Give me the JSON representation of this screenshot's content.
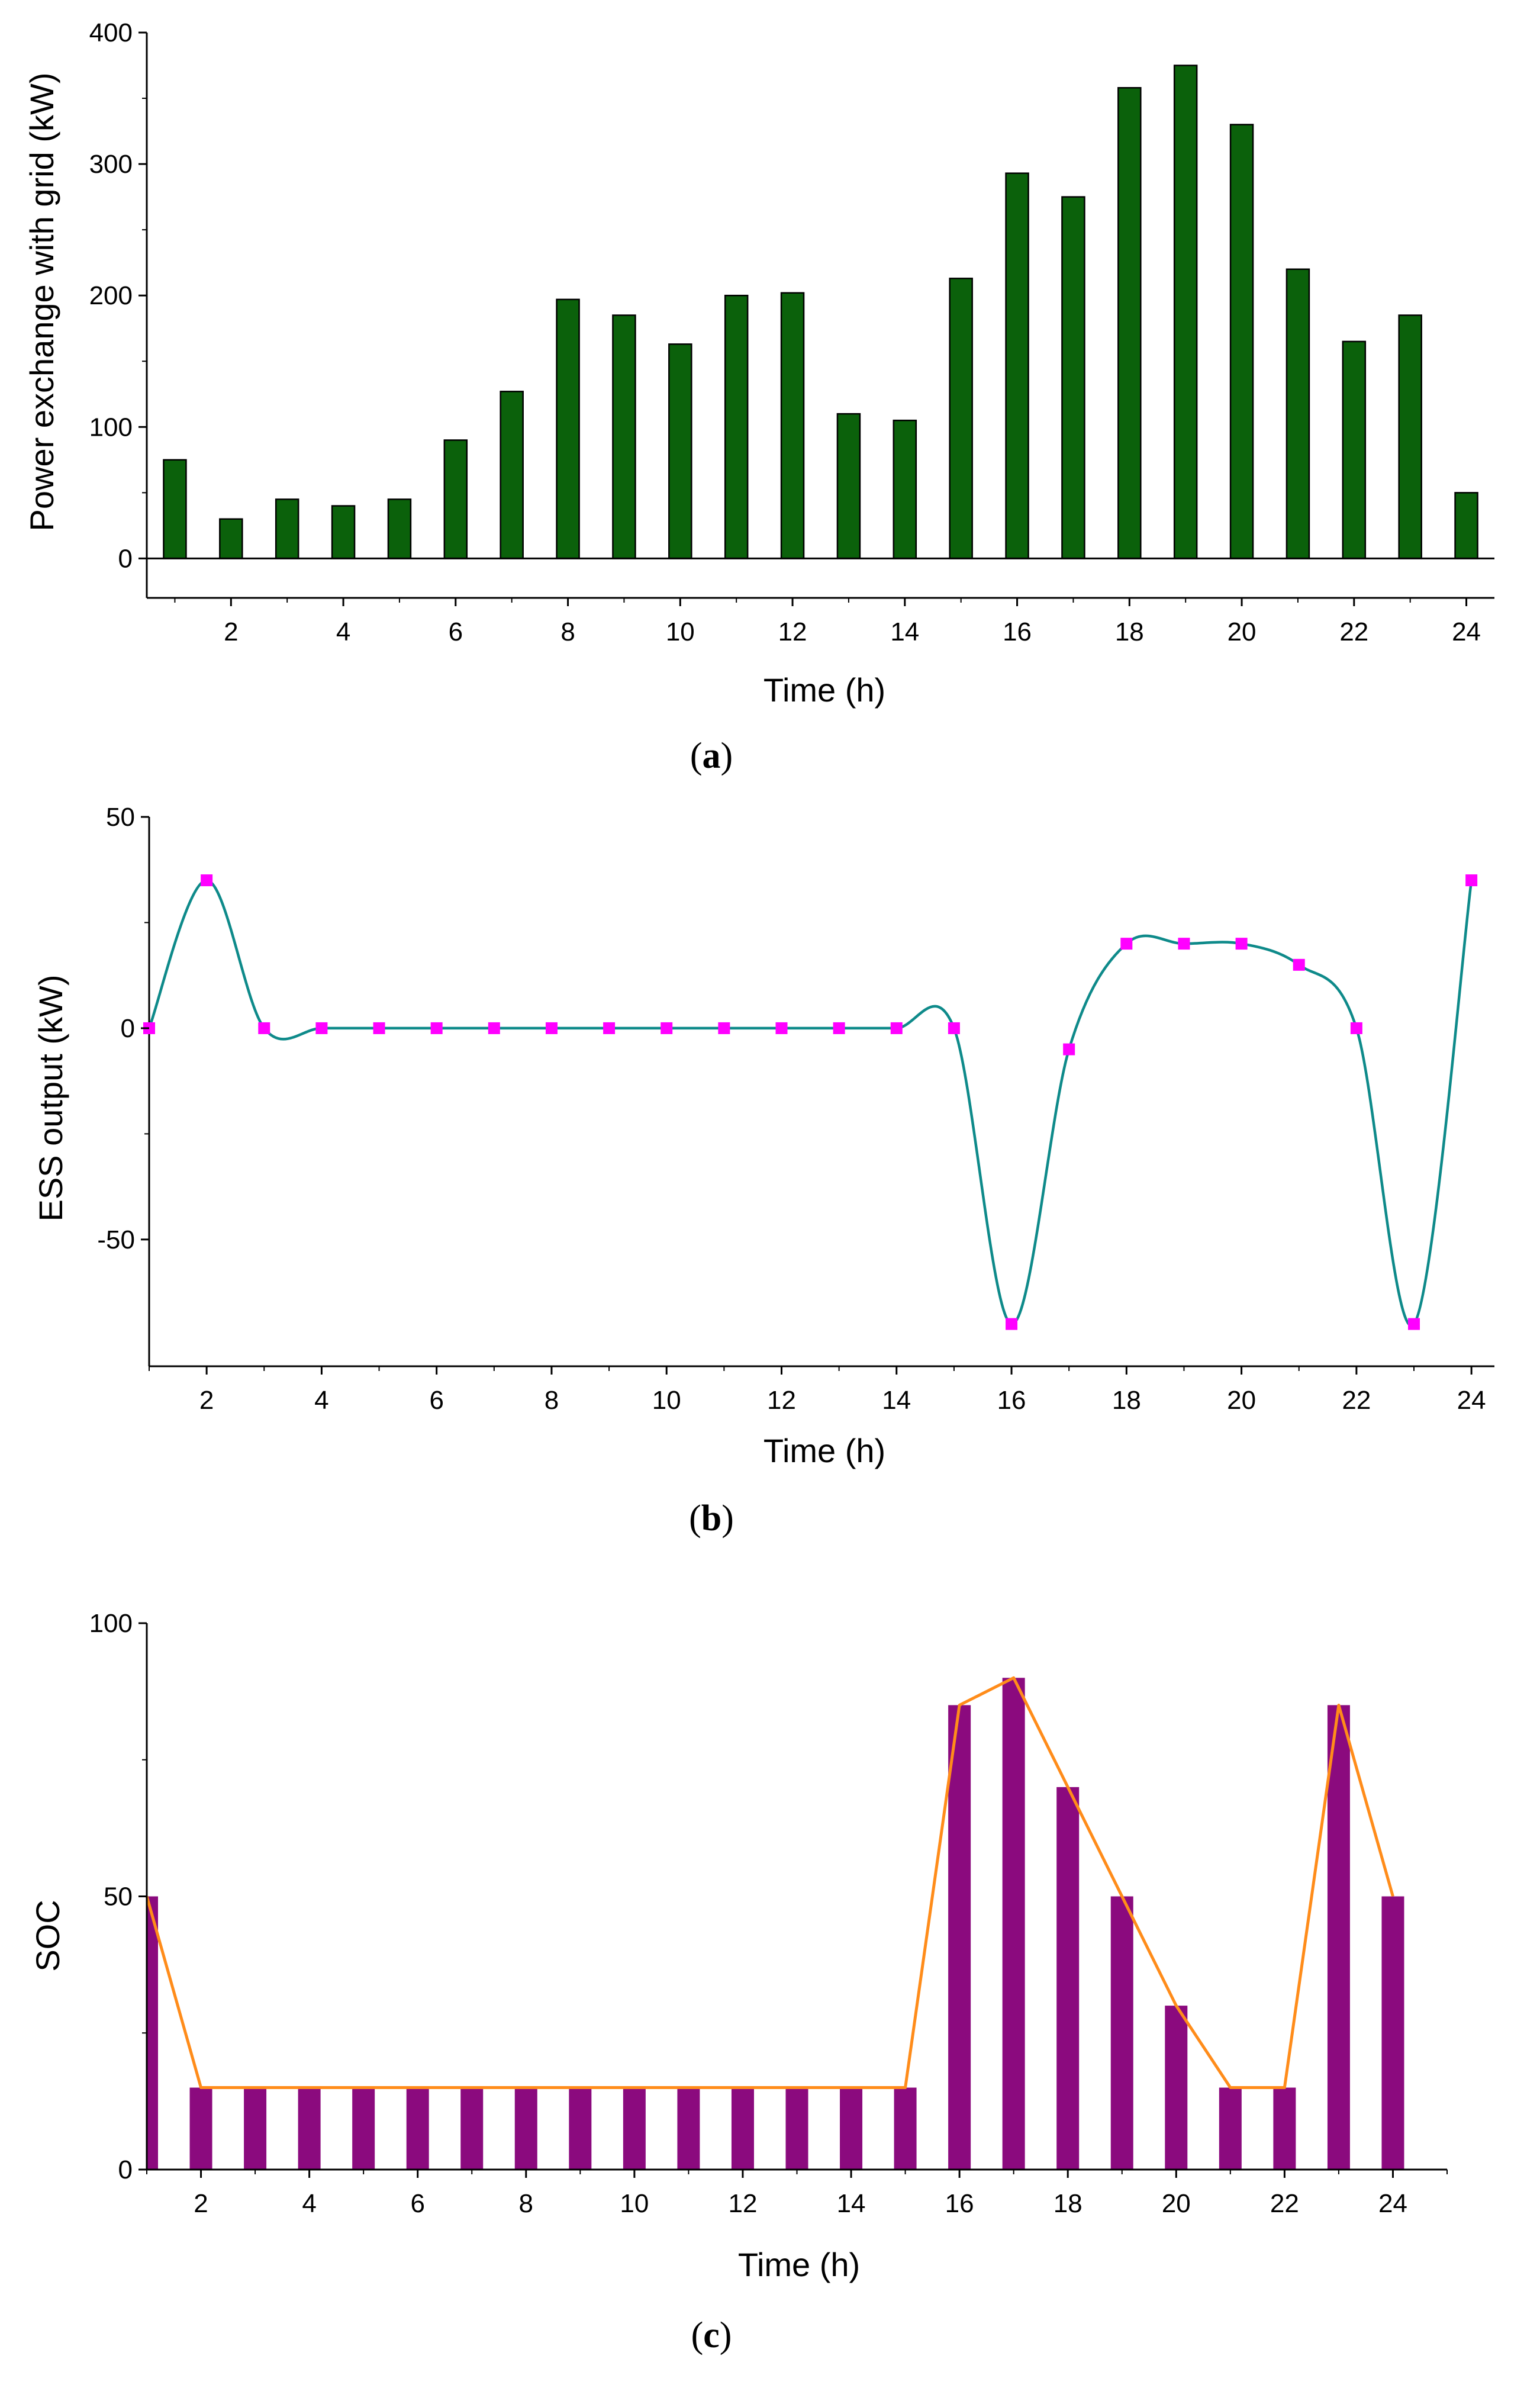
{
  "chart_data": [
    {
      "type": "bar",
      "panel": "a",
      "xlabel": "Time (h)",
      "ylabel": "Power exchange with grid (kW)",
      "x": [
        1,
        2,
        3,
        4,
        5,
        6,
        7,
        8,
        9,
        10,
        11,
        12,
        13,
        14,
        15,
        16,
        17,
        18,
        19,
        20,
        21,
        22,
        23,
        24
      ],
      "values": [
        75,
        30,
        45,
        40,
        45,
        90,
        127,
        197,
        185,
        163,
        200,
        202,
        110,
        105,
        213,
        293,
        275,
        358,
        375,
        330,
        220,
        165,
        185,
        50
      ],
      "xlim": [
        0.5,
        24.5
      ],
      "ylim": [
        -30,
        400
      ],
      "yticks": [
        0,
        100,
        200,
        300,
        400
      ],
      "xticks": [
        2,
        4,
        6,
        8,
        10,
        12,
        14,
        16,
        18,
        20,
        22,
        24
      ],
      "bar_color": "#0b610b"
    },
    {
      "type": "line",
      "panel": "b",
      "xlabel": "Time (h)",
      "ylabel": "ESS output (kW)",
      "x": [
        1,
        2,
        3,
        4,
        5,
        6,
        7,
        8,
        9,
        10,
        11,
        12,
        13,
        14,
        15,
        16,
        17,
        18,
        19,
        20,
        21,
        22,
        23,
        24
      ],
      "values": [
        0,
        35,
        0,
        0,
        0,
        0,
        0,
        0,
        0,
        0,
        0,
        0,
        0,
        0,
        0,
        -70,
        -5,
        20,
        20,
        20,
        15,
        0,
        -70,
        35
      ],
      "xlim": [
        1,
        24.4
      ],
      "ylim": [
        -80,
        50
      ],
      "yticks": [
        -50,
        0,
        50
      ],
      "xticks": [
        2,
        4,
        6,
        8,
        10,
        12,
        14,
        16,
        18,
        20,
        22,
        24
      ],
      "line_color": "#0e8a8a",
      "marker_color": "#ff00ff",
      "smooth": true
    },
    {
      "type": "bar",
      "panel": "c",
      "xlabel": "Time (h)",
      "ylabel": "SOC",
      "x": [
        1,
        2,
        3,
        4,
        5,
        6,
        7,
        8,
        9,
        10,
        11,
        12,
        13,
        14,
        15,
        16,
        17,
        18,
        19,
        20,
        21,
        22,
        23,
        24
      ],
      "values": [
        50,
        15,
        15,
        15,
        15,
        15,
        15,
        15,
        15,
        15,
        15,
        15,
        15,
        15,
        15,
        85,
        90,
        70,
        50,
        30,
        15,
        15,
        85,
        50
      ],
      "line_values": [
        50,
        15,
        15,
        15,
        15,
        15,
        15,
        15,
        15,
        15,
        15,
        15,
        15,
        15,
        15,
        85,
        90,
        70,
        50,
        30,
        15,
        15,
        85,
        50
      ],
      "xlim": [
        1,
        25
      ],
      "ylim": [
        0,
        100
      ],
      "yticks": [
        0,
        50,
        100
      ],
      "xticks": [
        2,
        4,
        6,
        8,
        10,
        12,
        14,
        16,
        18,
        20,
        22,
        24
      ],
      "bar_color": "#8b0a7e",
      "line_color": "#ff8c1a"
    }
  ],
  "panel_labels": {
    "a": {
      "open": "(",
      "letter": "a",
      "close": ")"
    },
    "b": {
      "open": "(",
      "letter": "b",
      "close": ")"
    },
    "c": {
      "open": "(",
      "letter": "c",
      "close": ")"
    }
  }
}
